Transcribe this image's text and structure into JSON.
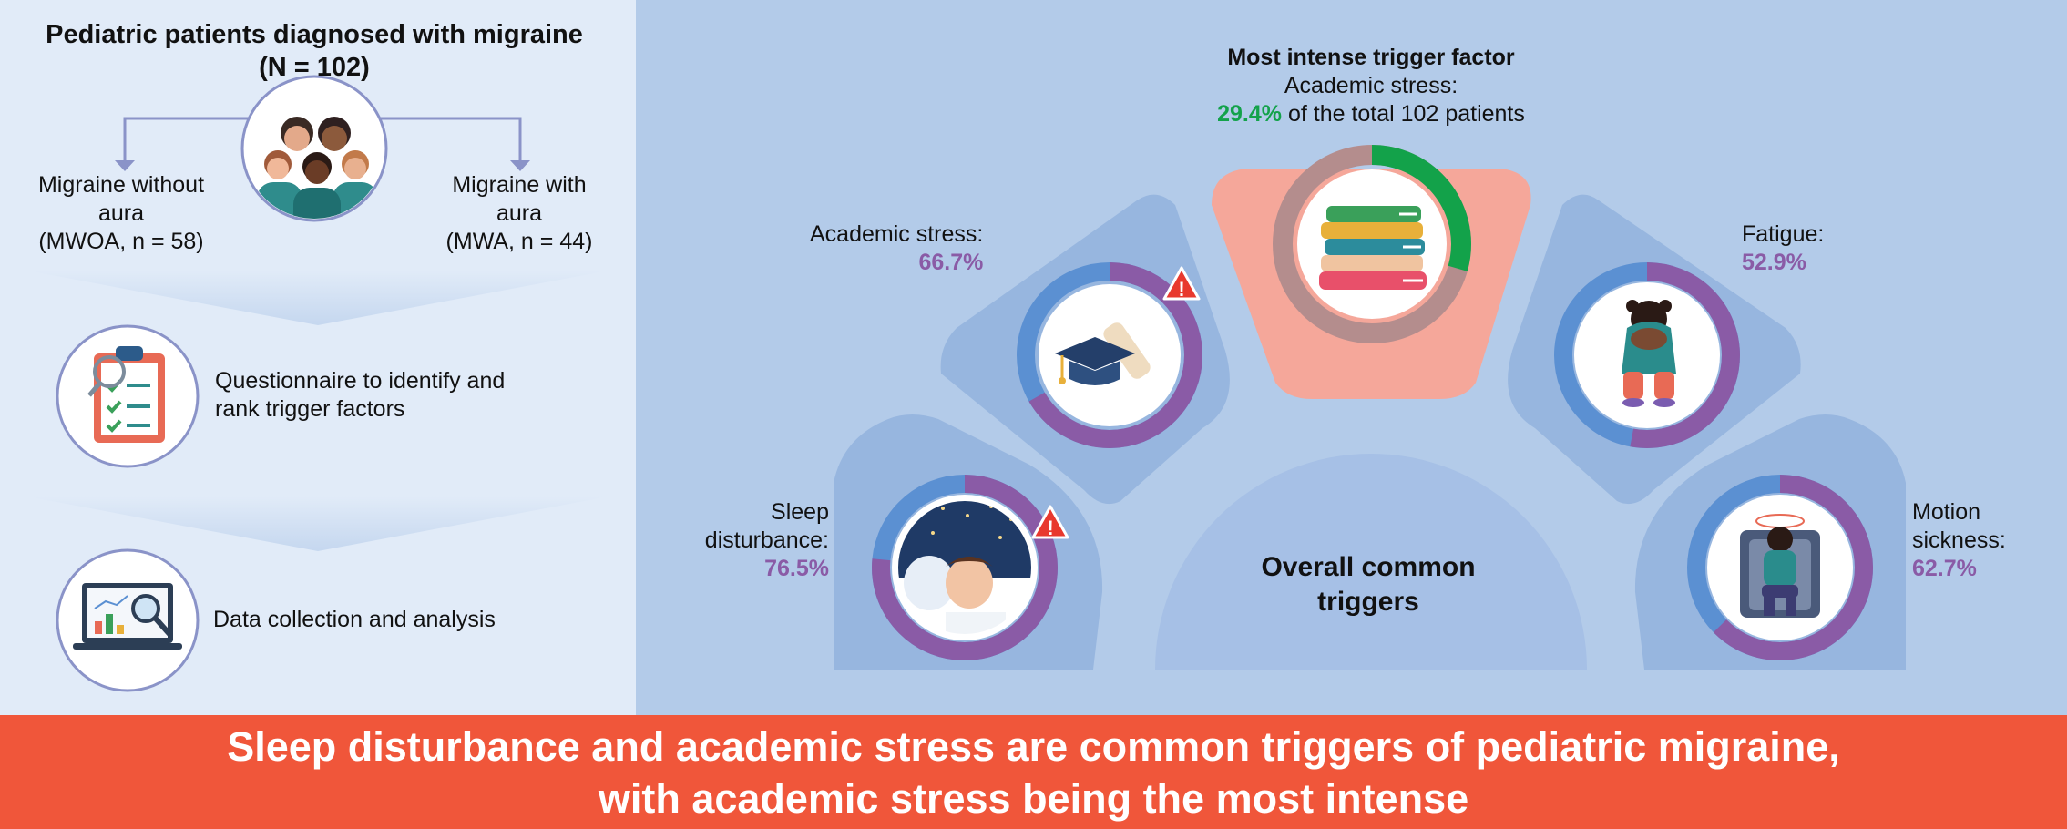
{
  "colors": {
    "left_bg": "#e1ebf8",
    "right_bg": "#b3cbe9",
    "banner_bg": "#f0563a",
    "petal": "#97b6df",
    "highlight_petal": "#f5a79a",
    "ring_purple": "#8a5ba6",
    "ring_blue": "#5b90d2",
    "ring_green": "#13a24a",
    "ring_grey": "#b48d8d",
    "connector": "#8a93c8"
  },
  "left": {
    "title_line1": "Pediatric patients diagnosed with migraine",
    "title_line2": "(N = 102)",
    "mwoa": {
      "line1": "Migraine without",
      "line2": "aura",
      "line3": "(MWOA, n = 58)"
    },
    "mwa": {
      "line1": "Migraine with",
      "line2": "aura",
      "line3": "(MWA, n = 44)"
    },
    "step1": {
      "line1": "Questionnaire to identify and",
      "line2": "rank trigger factors",
      "icon": "clipboard-checklist-icon"
    },
    "step2": {
      "line1": "Data collection and analysis",
      "icon": "laptop-analysis-icon"
    }
  },
  "right": {
    "intense": {
      "heading": "Most intense trigger factor",
      "line2": "Academic stress:",
      "pct_text": "29.4%",
      "rest_text": " of the total 102 patients",
      "value": 29.4,
      "icon": "books-icon"
    },
    "center_label_line1": "Overall common",
    "center_label_line2": "triggers",
    "triggers": [
      {
        "id": "academic",
        "label_line1": "Academic stress:",
        "label_line2": "",
        "pct_text": "66.7%",
        "value": 66.7,
        "warning": true,
        "icon": "graduation-cap-icon"
      },
      {
        "id": "sleep",
        "label_line1": "Sleep",
        "label_line2": "disturbance:",
        "pct_text": "76.5%",
        "value": 76.5,
        "warning": true,
        "icon": "sleeping-child-icon"
      },
      {
        "id": "fatigue",
        "label_line1": "Fatigue:",
        "label_line2": "",
        "pct_text": "52.9%",
        "value": 52.9,
        "warning": false,
        "icon": "tired-child-icon"
      },
      {
        "id": "motion",
        "label_line1": "Motion",
        "label_line2": "sickness:",
        "pct_text": "62.7%",
        "value": 62.7,
        "warning": false,
        "icon": "dizzy-child-icon"
      }
    ]
  },
  "banner": {
    "line1": "Sleep disturbance and academic stress are common triggers of pediatric migraine,",
    "line2": "with academic stress being the most intense"
  }
}
